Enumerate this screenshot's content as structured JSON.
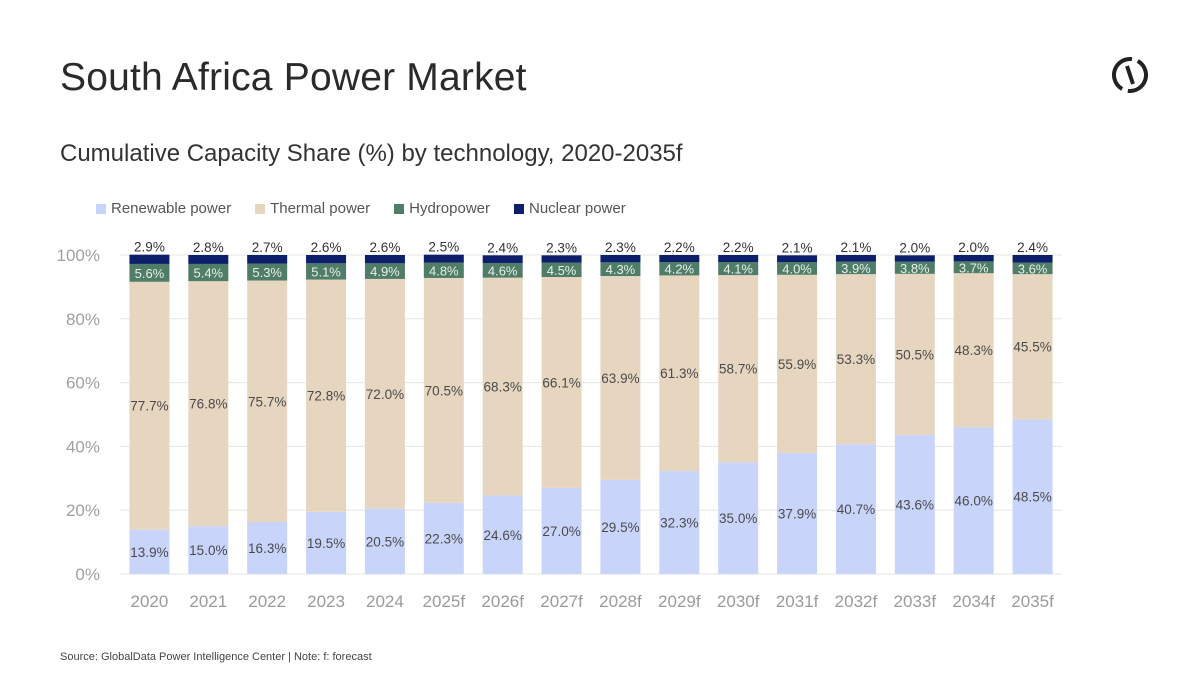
{
  "header": {
    "title": "South Africa Power Market",
    "subtitle": "Cumulative Capacity Share (%) by technology, 2020-2035f",
    "logo_icon": "globaldata-logo-icon"
  },
  "legend": [
    {
      "label": "Renewable power",
      "color": "#c9d4fb"
    },
    {
      "label": "Thermal power",
      "color": "#e6d6c0"
    },
    {
      "label": "Hydropower",
      "color": "#4f7d68"
    },
    {
      "label": "Nuclear power",
      "color": "#0d1f6b"
    }
  ],
  "footer": {
    "source": "Source: GlobalData Power Intelligence Center | Note: f: forecast"
  },
  "chart_data": {
    "type": "bar",
    "stacked": true,
    "title": "Cumulative Capacity Share (%) by technology, 2020-2035f",
    "xlabel": "",
    "ylabel": "",
    "ylim": [
      0,
      100
    ],
    "yticks": [
      0,
      20,
      40,
      60,
      80,
      100
    ],
    "ytick_labels": [
      "0%",
      "20%",
      "40%",
      "60%",
      "80%",
      "100%"
    ],
    "grid": true,
    "legend_position": "top-left",
    "categories": [
      "2020",
      "2021",
      "2022",
      "2023",
      "2024",
      "2025f",
      "2026f",
      "2027f",
      "2028f",
      "2029f",
      "2030f",
      "2031f",
      "2032f",
      "2033f",
      "2034f",
      "2035f"
    ],
    "series": [
      {
        "name": "Renewable power",
        "color": "#c9d4fb",
        "label_color": "#4a4a4a",
        "values": [
          13.9,
          15.0,
          16.3,
          19.5,
          20.5,
          22.3,
          24.6,
          27.0,
          29.5,
          32.3,
          35.0,
          37.9,
          40.7,
          43.6,
          46.0,
          48.5
        ]
      },
      {
        "name": "Thermal power",
        "color": "#e6d6c0",
        "label_color": "#4a4a4a",
        "values": [
          77.7,
          76.8,
          75.7,
          72.8,
          72.0,
          70.5,
          68.3,
          66.1,
          63.9,
          61.3,
          58.7,
          55.9,
          53.3,
          50.5,
          48.3,
          45.5
        ]
      },
      {
        "name": "Hydropower",
        "color": "#4f7d68",
        "label_color": "#e8efe9",
        "values": [
          5.6,
          5.4,
          5.3,
          5.1,
          4.9,
          4.8,
          4.6,
          4.5,
          4.3,
          4.2,
          4.1,
          4.0,
          3.9,
          3.8,
          3.7,
          3.6
        ]
      },
      {
        "name": "Nuclear power",
        "color": "#0d1f6b",
        "label_color": "#333333",
        "values": [
          2.9,
          2.8,
          2.7,
          2.6,
          2.6,
          2.5,
          2.4,
          2.3,
          2.3,
          2.2,
          2.2,
          2.1,
          2.1,
          2.0,
          2.0,
          2.4
        ]
      }
    ]
  }
}
